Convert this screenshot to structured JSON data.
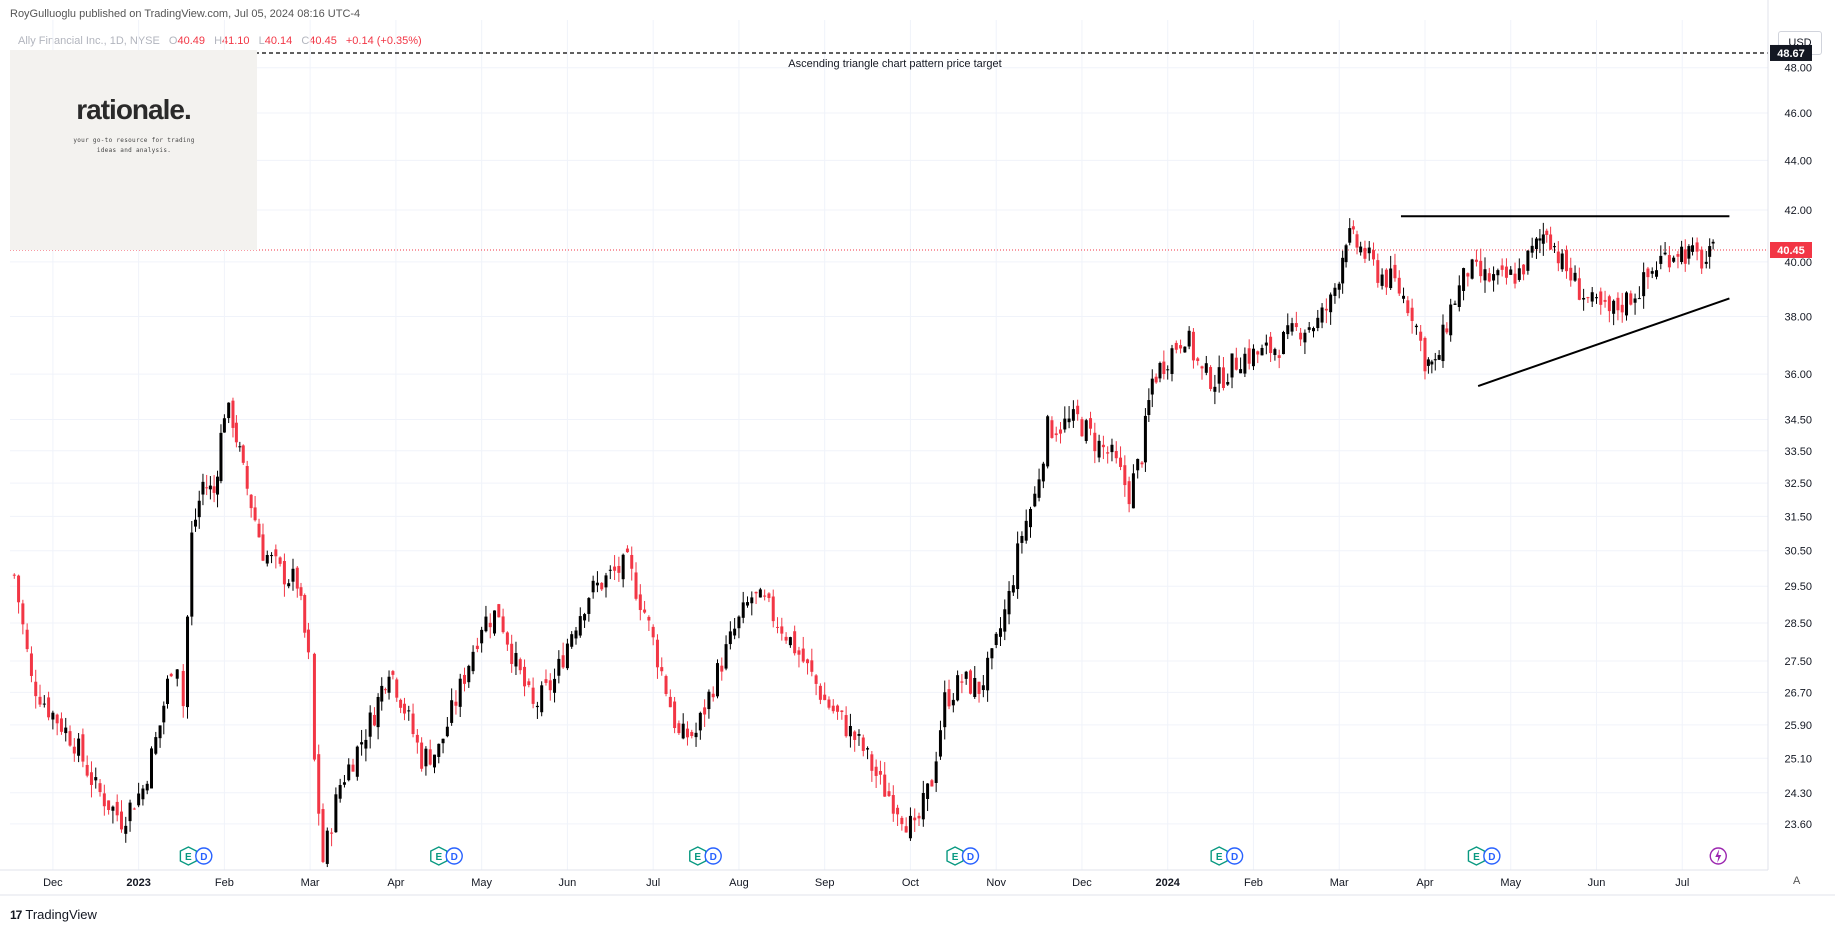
{
  "header": {
    "published_by": "RoyGulluoglu published on TradingView.com,  Jul 05, 2024 08:16 UTC-4"
  },
  "legend": {
    "symbol": "Ally Financial Inc., 1D, NYSE",
    "open_label": "O",
    "open": "40.49",
    "high_label": "H",
    "high": "41.10",
    "low_label": "L",
    "low": "40.14",
    "close_label": "C",
    "close": "40.45",
    "change": "+0.14 (+0.35%)"
  },
  "currency_button": "USD",
  "logo": {
    "title": "rationale.",
    "subtitle": "your go-to resource for trading ideas and analysis."
  },
  "footer": {
    "brand": "TradingView",
    "mark": "17"
  },
  "auto_scale_button": "A",
  "colors": {
    "up": "#000000",
    "down": "#f23645",
    "grid": "#f0f3fa",
    "axis_text": "#131722"
  },
  "chart_data": {
    "type": "candlestick",
    "symbol": "ALLY",
    "interval": "1D",
    "y_scale": "log",
    "ylim": [
      22.6,
      50.2
    ],
    "y_ticks": [
      "48.00",
      "46.00",
      "44.00",
      "42.00",
      "40.00",
      "38.00",
      "36.00",
      "34.50",
      "33.50",
      "32.50",
      "31.50",
      "30.50",
      "29.50",
      "28.50",
      "27.50",
      "26.70",
      "25.90",
      "25.10",
      "24.30",
      "23.60"
    ],
    "x_ticks": [
      "Dec",
      "2023",
      "Feb",
      "Mar",
      "Apr",
      "May",
      "Jun",
      "Jul",
      "Aug",
      "Sep",
      "Oct",
      "Nov",
      "Dec",
      "2024",
      "Feb",
      "Mar",
      "Apr",
      "May",
      "Jun",
      "Jul"
    ],
    "x_tick_months": [
      0,
      1,
      2,
      3,
      4,
      5,
      6,
      7,
      8,
      9,
      10,
      11,
      12,
      13,
      14,
      15,
      16,
      17,
      18,
      19
    ],
    "price_target": {
      "value": 48.67,
      "label": "Ascending triangle chart pattern price target"
    },
    "last_price": 40.45,
    "triangle": {
      "resistance": {
        "from": {
          "month": 15.72,
          "price": 41.75
        },
        "to": {
          "month": 19.55,
          "price": 41.75
        }
      },
      "support": {
        "from": {
          "month": 16.62,
          "price": 35.6
        },
        "to": {
          "month": 19.55,
          "price": 38.65
        }
      }
    },
    "anchors": [
      {
        "m": -0.45,
        "p": 29.8
      },
      {
        "m": -0.25,
        "p": 27.0
      },
      {
        "m": -0.05,
        "p": 26.3
      },
      {
        "m": 0.25,
        "p": 25.5
      },
      {
        "m": 0.5,
        "p": 24.4
      },
      {
        "m": 0.8,
        "p": 23.7
      },
      {
        "m": 1.05,
        "p": 24.4
      },
      {
        "m": 1.25,
        "p": 25.9
      },
      {
        "m": 1.38,
        "p": 27.4
      },
      {
        "m": 1.45,
        "p": 27.5
      },
      {
        "m": 1.52,
        "p": 26.4
      },
      {
        "m": 1.62,
        "p": 30.9
      },
      {
        "m": 1.75,
        "p": 32.5
      },
      {
        "m": 1.88,
        "p": 32.2
      },
      {
        "m": 2.0,
        "p": 34.8
      },
      {
        "m": 2.1,
        "p": 34.5
      },
      {
        "m": 2.22,
        "p": 32.8
      },
      {
        "m": 2.45,
        "p": 30.5
      },
      {
        "m": 2.65,
        "p": 29.9
      },
      {
        "m": 2.85,
        "p": 29.6
      },
      {
        "m": 2.98,
        "p": 27.5
      },
      {
        "m": 3.05,
        "p": 25.0
      },
      {
        "m": 3.15,
        "p": 22.8
      },
      {
        "m": 3.35,
        "p": 24.5
      },
      {
        "m": 3.55,
        "p": 25.3
      },
      {
        "m": 3.75,
        "p": 26.2
      },
      {
        "m": 3.92,
        "p": 27.4
      },
      {
        "m": 4.1,
        "p": 26.3
      },
      {
        "m": 4.3,
        "p": 25.1
      },
      {
        "m": 4.5,
        "p": 25.3
      },
      {
        "m": 4.75,
        "p": 26.8
      },
      {
        "m": 5.0,
        "p": 28.5
      },
      {
        "m": 5.2,
        "p": 28.8
      },
      {
        "m": 5.4,
        "p": 27.4
      },
      {
        "m": 5.6,
        "p": 26.3
      },
      {
        "m": 5.85,
        "p": 27.0
      },
      {
        "m": 6.05,
        "p": 28.3
      },
      {
        "m": 6.25,
        "p": 29.3
      },
      {
        "m": 6.5,
        "p": 29.8
      },
      {
        "m": 6.7,
        "p": 30.1
      },
      {
        "m": 6.9,
        "p": 28.8
      },
      {
        "m": 7.1,
        "p": 27.2
      },
      {
        "m": 7.3,
        "p": 25.6
      },
      {
        "m": 7.5,
        "p": 25.7
      },
      {
        "m": 7.75,
        "p": 27.2
      },
      {
        "m": 7.95,
        "p": 28.3
      },
      {
        "m": 8.15,
        "p": 29.2
      },
      {
        "m": 8.3,
        "p": 29.0
      },
      {
        "m": 8.5,
        "p": 28.4
      },
      {
        "m": 8.75,
        "p": 27.5
      },
      {
        "m": 9.0,
        "p": 26.5
      },
      {
        "m": 9.2,
        "p": 26.0
      },
      {
        "m": 9.45,
        "p": 25.3
      },
      {
        "m": 9.65,
        "p": 24.5
      },
      {
        "m": 9.85,
        "p": 24.0
      },
      {
        "m": 10.05,
        "p": 23.4
      },
      {
        "m": 10.25,
        "p": 24.6
      },
      {
        "m": 10.4,
        "p": 26.5
      },
      {
        "m": 10.6,
        "p": 27.0
      },
      {
        "m": 10.8,
        "p": 26.8
      },
      {
        "m": 10.95,
        "p": 27.5
      },
      {
        "m": 11.15,
        "p": 29.2
      },
      {
        "m": 11.3,
        "p": 31.0
      },
      {
        "m": 11.45,
        "p": 32.1
      },
      {
        "m": 11.6,
        "p": 34.2
      },
      {
        "m": 11.75,
        "p": 34.3
      },
      {
        "m": 11.95,
        "p": 34.5
      },
      {
        "m": 12.15,
        "p": 33.8
      },
      {
        "m": 12.35,
        "p": 33.3
      },
      {
        "m": 12.55,
        "p": 32.2
      },
      {
        "m": 12.7,
        "p": 33.4
      },
      {
        "m": 12.82,
        "p": 35.8
      },
      {
        "m": 13.0,
        "p": 36.6
      },
      {
        "m": 13.2,
        "p": 37.4
      },
      {
        "m": 13.4,
        "p": 36.0
      },
      {
        "m": 13.6,
        "p": 35.8
      },
      {
        "m": 13.85,
        "p": 36.6
      },
      {
        "m": 14.1,
        "p": 36.7
      },
      {
        "m": 14.3,
        "p": 37.0
      },
      {
        "m": 14.55,
        "p": 37.6
      },
      {
        "m": 14.75,
        "p": 37.8
      },
      {
        "m": 14.9,
        "p": 38.5
      },
      {
        "m": 15.0,
        "p": 39.6
      },
      {
        "m": 15.08,
        "p": 41.0
      },
      {
        "m": 15.25,
        "p": 40.5
      },
      {
        "m": 15.45,
        "p": 39.6
      },
      {
        "m": 15.65,
        "p": 39.2
      },
      {
        "m": 15.85,
        "p": 38.2
      },
      {
        "m": 16.0,
        "p": 36.5
      },
      {
        "m": 16.12,
        "p": 36.2
      },
      {
        "m": 16.3,
        "p": 38.3
      },
      {
        "m": 16.5,
        "p": 39.7
      },
      {
        "m": 16.7,
        "p": 39.4
      },
      {
        "m": 16.9,
        "p": 39.3
      },
      {
        "m": 17.1,
        "p": 39.6
      },
      {
        "m": 17.3,
        "p": 40.6
      },
      {
        "m": 17.42,
        "p": 41.3
      },
      {
        "m": 17.6,
        "p": 39.9
      },
      {
        "m": 17.8,
        "p": 39.0
      },
      {
        "m": 17.95,
        "p": 38.4
      },
      {
        "m": 18.15,
        "p": 38.1
      },
      {
        "m": 18.35,
        "p": 38.6
      },
      {
        "m": 18.55,
        "p": 39.2
      },
      {
        "m": 18.75,
        "p": 40.1
      },
      {
        "m": 18.95,
        "p": 40.5
      },
      {
        "m": 19.12,
        "p": 40.2
      },
      {
        "m": 19.28,
        "p": 40.0
      },
      {
        "m": 19.4,
        "p": 40.45
      }
    ],
    "events": [
      {
        "type": "E",
        "month": 1.58
      },
      {
        "type": "D",
        "month": 1.76
      },
      {
        "type": "E",
        "month": 4.5
      },
      {
        "type": "D",
        "month": 4.68
      },
      {
        "type": "E",
        "month": 7.52
      },
      {
        "type": "D",
        "month": 7.7
      },
      {
        "type": "E",
        "month": 10.52
      },
      {
        "type": "D",
        "month": 10.7
      },
      {
        "type": "E",
        "month": 13.6
      },
      {
        "type": "D",
        "month": 13.78
      },
      {
        "type": "E",
        "month": 16.6
      },
      {
        "type": "D",
        "month": 16.78
      }
    ],
    "lightning_event_month": 19.42
  }
}
